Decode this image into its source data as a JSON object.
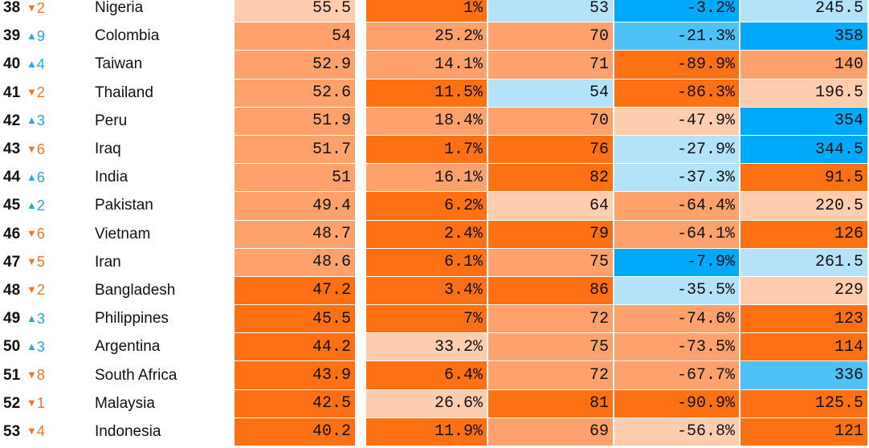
{
  "colors": {
    "dark-orange": "#fe7014",
    "mid-orange": "#fea16c",
    "light-orange": "#fecdb0",
    "light-blue": "#b3e2f9",
    "mid-blue": "#4fc1f9",
    "dark-blue": "#00a9fa",
    "up-arrow": "#2ba6e1",
    "down-arrow": "#f0772a"
  },
  "chart_data": {
    "type": "table",
    "columns": [
      "rank",
      "change",
      "country",
      "col1",
      "col2",
      "col3",
      "col4",
      "col5"
    ],
    "rows": [
      {
        "rank": "38",
        "dir": "down",
        "change": "2",
        "country": "Nigeria",
        "cells": [
          {
            "v": "55.5",
            "c": "light-orange"
          },
          {
            "v": "1%",
            "c": "dark-orange"
          },
          {
            "v": "53",
            "c": "light-blue"
          },
          {
            "v": "-3.2%",
            "c": "dark-blue"
          },
          {
            "v": "245.5",
            "c": "light-blue"
          }
        ]
      },
      {
        "rank": "39",
        "dir": "up",
        "change": "9",
        "country": "Colombia",
        "cells": [
          {
            "v": "54",
            "c": "mid-orange"
          },
          {
            "v": "25.2%",
            "c": "mid-orange"
          },
          {
            "v": "70",
            "c": "mid-orange"
          },
          {
            "v": "-21.3%",
            "c": "mid-blue"
          },
          {
            "v": "358",
            "c": "dark-blue"
          }
        ]
      },
      {
        "rank": "40",
        "dir": "up",
        "change": "4",
        "country": "Taiwan",
        "cells": [
          {
            "v": "52.9",
            "c": "mid-orange"
          },
          {
            "v": "14.1%",
            "c": "mid-orange"
          },
          {
            "v": "71",
            "c": "mid-orange"
          },
          {
            "v": "-89.9%",
            "c": "dark-orange"
          },
          {
            "v": "140",
            "c": "mid-orange"
          }
        ]
      },
      {
        "rank": "41",
        "dir": "down",
        "change": "2",
        "country": "Thailand",
        "cells": [
          {
            "v": "52.6",
            "c": "mid-orange"
          },
          {
            "v": "11.5%",
            "c": "dark-orange"
          },
          {
            "v": "54",
            "c": "light-blue"
          },
          {
            "v": "-86.3%",
            "c": "dark-orange"
          },
          {
            "v": "196.5",
            "c": "light-orange"
          }
        ]
      },
      {
        "rank": "42",
        "dir": "up",
        "change": "3",
        "country": "Peru",
        "cells": [
          {
            "v": "51.9",
            "c": "mid-orange"
          },
          {
            "v": "18.4%",
            "c": "mid-orange"
          },
          {
            "v": "70",
            "c": "mid-orange"
          },
          {
            "v": "-47.9%",
            "c": "light-orange"
          },
          {
            "v": "354",
            "c": "dark-blue"
          }
        ]
      },
      {
        "rank": "43",
        "dir": "down",
        "change": "6",
        "country": "Iraq",
        "cells": [
          {
            "v": "51.7",
            "c": "mid-orange"
          },
          {
            "v": "1.7%",
            "c": "dark-orange"
          },
          {
            "v": "76",
            "c": "dark-orange"
          },
          {
            "v": "-27.9%",
            "c": "light-blue"
          },
          {
            "v": "344.5",
            "c": "dark-blue"
          }
        ]
      },
      {
        "rank": "44",
        "dir": "up",
        "change": "6",
        "country": "India",
        "cells": [
          {
            "v": "51",
            "c": "mid-orange"
          },
          {
            "v": "16.1%",
            "c": "mid-orange"
          },
          {
            "v": "82",
            "c": "dark-orange"
          },
          {
            "v": "-37.3%",
            "c": "light-blue"
          },
          {
            "v": "91.5",
            "c": "dark-orange"
          }
        ]
      },
      {
        "rank": "45",
        "dir": "up",
        "change": "2",
        "country": "Pakistan",
        "cells": [
          {
            "v": "49.4",
            "c": "mid-orange"
          },
          {
            "v": "6.2%",
            "c": "dark-orange"
          },
          {
            "v": "64",
            "c": "light-orange"
          },
          {
            "v": "-64.4%",
            "c": "mid-orange"
          },
          {
            "v": "220.5",
            "c": "light-orange"
          }
        ]
      },
      {
        "rank": "46",
        "dir": "down",
        "change": "6",
        "country": "Vietnam",
        "cells": [
          {
            "v": "48.7",
            "c": "mid-orange"
          },
          {
            "v": "2.4%",
            "c": "dark-orange"
          },
          {
            "v": "79",
            "c": "dark-orange"
          },
          {
            "v": "-64.1%",
            "c": "mid-orange"
          },
          {
            "v": "126",
            "c": "dark-orange"
          }
        ]
      },
      {
        "rank": "47",
        "dir": "down",
        "change": "5",
        "country": "Iran",
        "cells": [
          {
            "v": "48.6",
            "c": "mid-orange"
          },
          {
            "v": "6.1%",
            "c": "dark-orange"
          },
          {
            "v": "75",
            "c": "mid-orange"
          },
          {
            "v": "-7.9%",
            "c": "dark-blue"
          },
          {
            "v": "261.5",
            "c": "light-blue"
          }
        ]
      },
      {
        "rank": "48",
        "dir": "down",
        "change": "2",
        "country": "Bangladesh",
        "cells": [
          {
            "v": "47.2",
            "c": "dark-orange"
          },
          {
            "v": "3.4%",
            "c": "dark-orange"
          },
          {
            "v": "86",
            "c": "dark-orange"
          },
          {
            "v": "-35.5%",
            "c": "light-blue"
          },
          {
            "v": "229",
            "c": "light-orange"
          }
        ]
      },
      {
        "rank": "49",
        "dir": "up",
        "change": "3",
        "country": "Philippines",
        "cells": [
          {
            "v": "45.5",
            "c": "dark-orange"
          },
          {
            "v": "7%",
            "c": "dark-orange"
          },
          {
            "v": "72",
            "c": "mid-orange"
          },
          {
            "v": "-74.6%",
            "c": "mid-orange"
          },
          {
            "v": "123",
            "c": "dark-orange"
          }
        ]
      },
      {
        "rank": "50",
        "dir": "up",
        "change": "3",
        "country": "Argentina",
        "cells": [
          {
            "v": "44.2",
            "c": "dark-orange"
          },
          {
            "v": "33.2%",
            "c": "light-orange"
          },
          {
            "v": "75",
            "c": "mid-orange"
          },
          {
            "v": "-73.5%",
            "c": "mid-orange"
          },
          {
            "v": "114",
            "c": "dark-orange"
          }
        ]
      },
      {
        "rank": "51",
        "dir": "down",
        "change": "8",
        "country": "South Africa",
        "cells": [
          {
            "v": "43.9",
            "c": "dark-orange"
          },
          {
            "v": "6.4%",
            "c": "dark-orange"
          },
          {
            "v": "72",
            "c": "mid-orange"
          },
          {
            "v": "-67.7%",
            "c": "mid-orange"
          },
          {
            "v": "336",
            "c": "mid-blue"
          }
        ]
      },
      {
        "rank": "52",
        "dir": "down",
        "change": "1",
        "country": "Malaysia",
        "cells": [
          {
            "v": "42.5",
            "c": "dark-orange"
          },
          {
            "v": "26.6%",
            "c": "light-orange"
          },
          {
            "v": "81",
            "c": "dark-orange"
          },
          {
            "v": "-90.9%",
            "c": "dark-orange"
          },
          {
            "v": "125.5",
            "c": "dark-orange"
          }
        ]
      },
      {
        "rank": "53",
        "dir": "down",
        "change": "4",
        "country": "Indonesia",
        "cells": [
          {
            "v": "40.2",
            "c": "dark-orange"
          },
          {
            "v": "11.9%",
            "c": "dark-orange"
          },
          {
            "v": "69",
            "c": "mid-orange"
          },
          {
            "v": "-56.8%",
            "c": "light-orange"
          },
          {
            "v": "121",
            "c": "dark-orange"
          }
        ]
      }
    ]
  }
}
